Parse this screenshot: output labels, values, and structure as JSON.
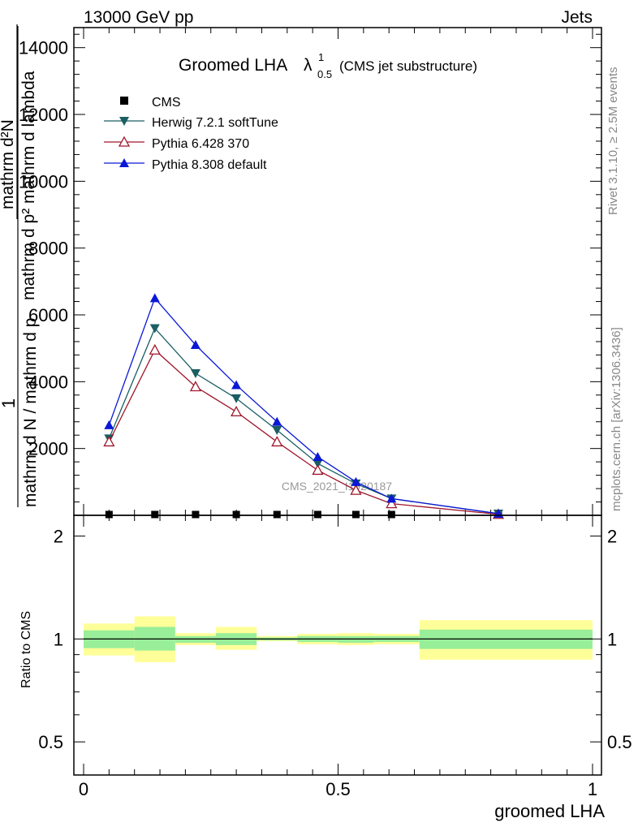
{
  "header": {
    "left": "13000 GeV pp",
    "right": "Jets"
  },
  "side_labels": {
    "top": "Rivet 3.1.10, ≥ 2.5M events",
    "bottom": "mcplots.cern.ch [arXiv:1306.3436]"
  },
  "watermark": "CMS_2021_I1920187",
  "chart_data": [
    {
      "type": "line",
      "panel": "main",
      "title_main": "Groomed LHA",
      "title_lambda": "λ",
      "title_sup": "1",
      "title_sub": "0.5",
      "title_note": "(CMS jet substructure)",
      "ylabel_num": "mathrm d²N",
      "ylabel_den": "mathrm d p² mathrm d lambda",
      "ylabel_outer_num": "1",
      "ylabel_outer_den": "mathrm d N / mathrm d p",
      "ylabel_small": "mathrm d p",
      "ylabel_big": "mathrm d p",
      "xlim": [
        0,
        1
      ],
      "ylim": [
        0,
        14600
      ],
      "yticks": [
        "2000",
        "4000",
        "6000",
        "8000",
        "10000",
        "12000",
        "14000"
      ],
      "ytick_values": [
        2000,
        4000,
        6000,
        8000,
        10000,
        12000,
        14000
      ],
      "x": [
        0.05,
        0.14,
        0.22,
        0.3,
        0.38,
        0.46,
        0.535,
        0.605,
        0.815
      ],
      "series": [
        {
          "name": "CMS",
          "color": "#000000",
          "marker": "square",
          "values": [
            0,
            0,
            0,
            0,
            0,
            0,
            0,
            0,
            0
          ]
        },
        {
          "name": "Herwig 7.2.1 softTune",
          "color": "#1a5e63",
          "marker": "triangle-down",
          "values": [
            2300,
            5600,
            4250,
            3500,
            2550,
            1550,
            950,
            500,
            50
          ]
        },
        {
          "name": "Pythia 6.428 370",
          "color": "#a0162a",
          "marker": "triangle-up-open",
          "values": [
            2200,
            4950,
            3850,
            3100,
            2200,
            1350,
            750,
            350,
            30
          ]
        },
        {
          "name": "Pythia 8.308 default",
          "color": "#0a18d6",
          "marker": "triangle-up",
          "values": [
            2700,
            6500,
            5100,
            3900,
            2800,
            1750,
            1000,
            500,
            50
          ]
        }
      ]
    },
    {
      "type": "area",
      "panel": "ratio",
      "ylabel": "Ratio to CMS",
      "xlabel": "groomed LHA",
      "xlim": [
        0,
        1
      ],
      "ylim": [
        0.4,
        2.3
      ],
      "xticks": [
        "0",
        "0.5",
        "1"
      ],
      "xtick_values": [
        0,
        0.5,
        1
      ],
      "yticks": [
        "0.5",
        "1",
        "2"
      ],
      "ytick_values": [
        0.5,
        1,
        2
      ],
      "bins": [
        {
          "x0": 0.0,
          "x1": 0.1,
          "yellow": [
            0.895,
            1.11
          ],
          "green": [
            0.94,
            1.06
          ]
        },
        {
          "x0": 0.1,
          "x1": 0.18,
          "yellow": [
            0.855,
            1.165
          ],
          "green": [
            0.925,
            1.085
          ]
        },
        {
          "x0": 0.18,
          "x1": 0.26,
          "yellow": [
            0.96,
            1.04
          ],
          "green": [
            0.975,
            1.02
          ]
        },
        {
          "x0": 0.26,
          "x1": 0.34,
          "yellow": [
            0.93,
            1.085
          ],
          "green": [
            0.96,
            1.04
          ]
        },
        {
          "x0": 0.34,
          "x1": 0.42,
          "yellow": [
            0.985,
            1.02
          ],
          "green": [
            0.99,
            1.01
          ]
        },
        {
          "x0": 0.42,
          "x1": 0.5,
          "yellow": [
            0.965,
            1.035
          ],
          "green": [
            0.98,
            1.02
          ]
        },
        {
          "x0": 0.5,
          "x1": 0.57,
          "yellow": [
            0.96,
            1.04
          ],
          "green": [
            0.975,
            1.02
          ]
        },
        {
          "x0": 0.57,
          "x1": 0.66,
          "yellow": [
            0.965,
            1.035
          ],
          "green": [
            0.98,
            1.02
          ]
        },
        {
          "x0": 0.66,
          "x1": 1.0,
          "yellow": [
            0.87,
            1.135
          ],
          "green": [
            0.935,
            1.065
          ]
        }
      ]
    }
  ]
}
